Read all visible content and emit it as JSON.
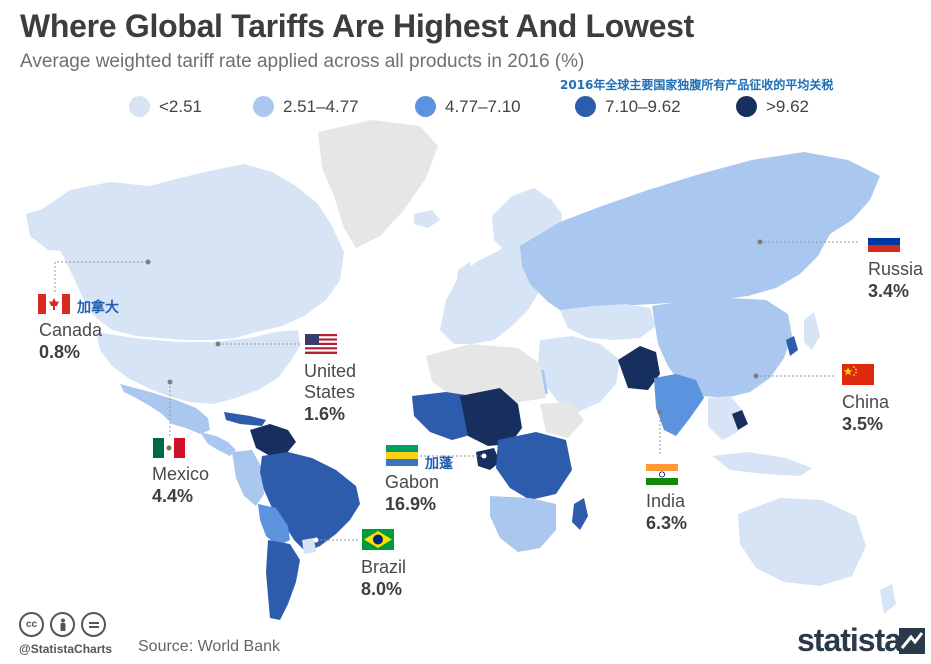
{
  "title": "Where Global Tariffs Are Highest And Lowest",
  "subtitle": "Average weighted tariff rate applied across all products in 2016 (%)",
  "subtitle_cn": "2016年全球主要国家独腹所有产品征收的平均关税",
  "legend": [
    {
      "label": "<2.51",
      "color": "#d6e4f6"
    },
    {
      "label": "2.51–4.77",
      "color": "#a9c7ef"
    },
    {
      "label": "4.77–7.10",
      "color": "#5b93df"
    },
    {
      "label": "7.10–9.62",
      "color": "#2c5cab"
    },
    {
      "label": ">9.62",
      "color": "#162f5e"
    }
  ],
  "colors": {
    "no_data": "#e6e6e6",
    "leader_line": "#9a9a9a",
    "accent_cn": "#1f6fb5"
  },
  "callouts": {
    "canada": {
      "name": "Canada",
      "value": "0.8%",
      "cn": "加拿大"
    },
    "united_states": {
      "name": "United States",
      "name_line1": "United",
      "name_line2": "States",
      "value": "1.6%"
    },
    "mexico": {
      "name": "Mexico",
      "value": "4.4%"
    },
    "gabon": {
      "name": "Gabon",
      "value": "16.9%",
      "cn": "加蓬"
    },
    "brazil": {
      "name": "Brazil",
      "value": "8.0%"
    },
    "india": {
      "name": "India",
      "value": "6.3%"
    },
    "russia": {
      "name": "Russia",
      "value": "3.4%"
    },
    "china": {
      "name": "China",
      "value": "3.5%"
    }
  },
  "footer": {
    "handle": "@StatistaCharts",
    "source": "Source: World Bank",
    "brand": "statista"
  }
}
